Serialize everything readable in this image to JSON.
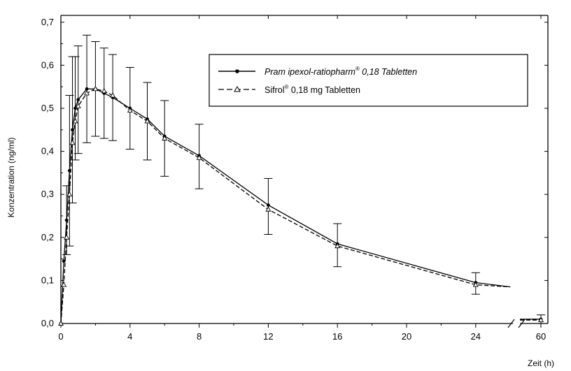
{
  "chart_data": {
    "type": "line",
    "title": "",
    "xlabel": "Zeit (h)",
    "ylabel": "Konzentration (ng/ml)",
    "xlim": [
      0,
      28
    ],
    "ylim": [
      0,
      0.7
    ],
    "x_break": {
      "after": 26.5,
      "resume_label_value": 60
    },
    "xticks": [
      {
        "value": 0,
        "label": "0"
      },
      {
        "value": 4,
        "label": "4"
      },
      {
        "value": 8,
        "label": "8"
      },
      {
        "value": 12,
        "label": "12"
      },
      {
        "value": 16,
        "label": "16"
      },
      {
        "value": 20,
        "label": "20"
      },
      {
        "value": 24,
        "label": "24"
      },
      {
        "value": 60,
        "label": "60"
      }
    ],
    "yticks": [
      {
        "value": 0.0,
        "label": "0,0"
      },
      {
        "value": 0.1,
        "label": "0,1"
      },
      {
        "value": 0.2,
        "label": "0,2"
      },
      {
        "value": 0.3,
        "label": "0,3"
      },
      {
        "value": 0.4,
        "label": "0,4"
      },
      {
        "value": 0.5,
        "label": "0,5"
      },
      {
        "value": 0.6,
        "label": "0,6"
      },
      {
        "value": 0.7,
        "label": "0,7"
      }
    ],
    "grid": false,
    "legend_position": "top-right",
    "series": [
      {
        "name": "Pramipexol-ratiopharm® 0,18 Tabletten",
        "legend_text": "Pram ipexol-ratiopharm",
        "legend_sup": "®",
        "legend_rest": " 0,18  Tabletten",
        "line_style": "solid",
        "marker": "filled-circle",
        "x": [
          0,
          0.17,
          0.33,
          0.5,
          0.67,
          0.83,
          1,
          1.5,
          2,
          2.5,
          3,
          4,
          5,
          6,
          8,
          12,
          16,
          24,
          26,
          60
        ],
        "y": [
          0,
          0.145,
          0.24,
          0.355,
          0.45,
          0.5,
          0.52,
          0.545,
          0.545,
          0.535,
          0.525,
          0.5,
          0.475,
          0.435,
          0.39,
          0.275,
          0.185,
          0.095,
          0.085,
          0.01
        ]
      },
      {
        "name": "Sifrol® 0,18 mg Tabletten",
        "legend_text": "Sifrol",
        "legend_sup": "®",
        "legend_rest": " 0,18 mg Tabletten",
        "line_style": "dashed",
        "marker": "open-triangle",
        "x": [
          0,
          0.17,
          0.33,
          0.5,
          0.67,
          0.83,
          1,
          1.5,
          2,
          2.5,
          3,
          4,
          5,
          6,
          8,
          12,
          16,
          24,
          26,
          60
        ],
        "y": [
          0,
          0.09,
          0.2,
          0.3,
          0.42,
          0.47,
          0.505,
          0.535,
          0.545,
          0.54,
          0.53,
          0.495,
          0.47,
          0.43,
          0.385,
          0.265,
          0.18,
          0.09,
          0.085,
          0.008
        ]
      }
    ],
    "error_bars": {
      "x": [
        0.33,
        0.5,
        0.67,
        0.83,
        1,
        1.5,
        2,
        2.5,
        3,
        4,
        5,
        6,
        8,
        12,
        16,
        24,
        60
      ],
      "mean": [
        0.24,
        0.355,
        0.45,
        0.5,
        0.52,
        0.545,
        0.545,
        0.535,
        0.525,
        0.5,
        0.47,
        0.43,
        0.388,
        0.272,
        0.182,
        0.093,
        0.01
      ],
      "sd": [
        0.08,
        0.175,
        0.17,
        0.12,
        0.125,
        0.125,
        0.11,
        0.105,
        0.1,
        0.095,
        0.09,
        0.088,
        0.075,
        0.065,
        0.05,
        0.025,
        0.01
      ]
    }
  }
}
